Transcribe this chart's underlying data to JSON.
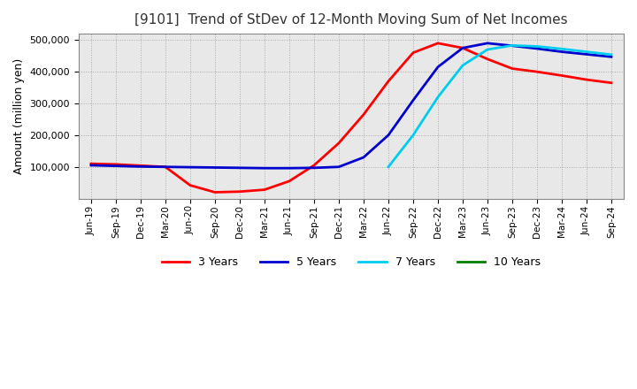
{
  "title": "[9101]  Trend of StDev of 12-Month Moving Sum of Net Incomes",
  "ylabel": "Amount (million yen)",
  "legend_labels": [
    "3 Years",
    "5 Years",
    "7 Years",
    "10 Years"
  ],
  "legend_colors": [
    "#ff0000",
    "#0000cd",
    "#00ccee",
    "#008000"
  ],
  "ylim": [
    0,
    520000
  ],
  "yticks": [
    100000,
    200000,
    300000,
    400000,
    500000
  ],
  "background_color": "#ffffff",
  "plot_bg_color": "#e8e8e8",
  "grid_color": "#aaaaaa",
  "dates": [
    "Jun-19",
    "Sep-19",
    "Dec-19",
    "Mar-20",
    "Jun-20",
    "Sep-20",
    "Dec-20",
    "Mar-21",
    "Jun-21",
    "Sep-21",
    "Dec-21",
    "Mar-22",
    "Jun-22",
    "Sep-22",
    "Dec-22",
    "Mar-23",
    "Jun-23",
    "Sep-23",
    "Dec-23",
    "Mar-24",
    "Jun-24",
    "Sep-24"
  ],
  "series_3y": [
    110000,
    108000,
    104000,
    100000,
    42000,
    20000,
    22000,
    28000,
    55000,
    105000,
    175000,
    265000,
    370000,
    460000,
    490000,
    475000,
    440000,
    410000,
    400000,
    388000,
    375000,
    365000
  ],
  "series_5y": [
    105000,
    103000,
    101000,
    100000,
    99000,
    98000,
    97000,
    96000,
    96000,
    97000,
    100000,
    130000,
    200000,
    310000,
    415000,
    475000,
    490000,
    482000,
    473000,
    463000,
    455000,
    447000
  ],
  "series_7y": [
    null,
    null,
    null,
    null,
    null,
    null,
    null,
    null,
    null,
    null,
    null,
    null,
    100000,
    200000,
    320000,
    420000,
    470000,
    483000,
    480000,
    472000,
    463000,
    454000
  ],
  "series_10y": [
    null,
    null,
    null,
    null,
    null,
    null,
    null,
    null,
    null,
    null,
    null,
    null,
    null,
    null,
    null,
    null,
    null,
    null,
    null,
    null,
    null,
    null
  ]
}
